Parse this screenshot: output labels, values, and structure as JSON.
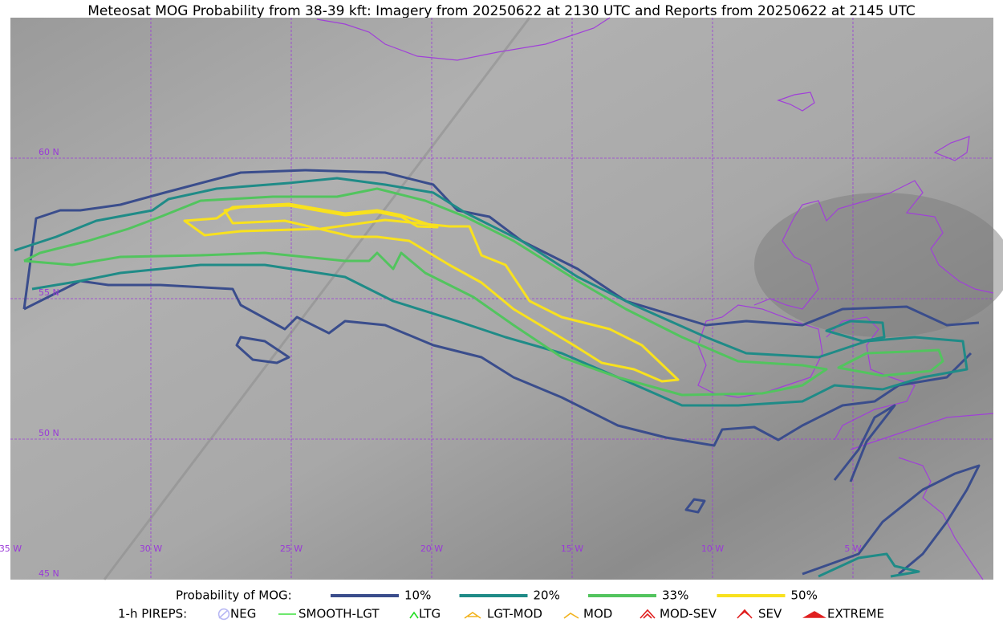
{
  "title": "Meteosat MOG Probability from 38-39 kft: Imagery from 20250622 at 2130 UTC and Reports from 20250622 at 2145 UTC",
  "map": {
    "lat_labels": [
      "60 N",
      "55 N",
      "50 N",
      "45 N"
    ],
    "lon_labels": [
      "35 W",
      "30 W",
      "25 W",
      "20 W",
      "15 W",
      "10 W",
      "5 W"
    ]
  },
  "legend": {
    "probability": {
      "label": "Probability of MOG:",
      "items": [
        {
          "label": "10%",
          "color": "#3a4d8c"
        },
        {
          "label": "20%",
          "color": "#1f8b87"
        },
        {
          "label": "33%",
          "color": "#52c45e"
        },
        {
          "label": "50%",
          "color": "#f8e11e"
        }
      ]
    },
    "pireps": {
      "label": "1-h PIREPS:",
      "items": [
        {
          "label": "NEG",
          "color": "#b8b8f4"
        },
        {
          "label": "SMOOTH-LGT",
          "color": "#3fe03f"
        },
        {
          "label": "LTG",
          "color": "#22dd22"
        },
        {
          "label": "LGT-MOD",
          "color": "#f2b21c"
        },
        {
          "label": "MOD",
          "color": "#f2b21c"
        },
        {
          "label": "MOD-SEV",
          "color": "#e02020"
        },
        {
          "label": "SEV",
          "color": "#e02020"
        },
        {
          "label": "EXTREME",
          "color": "#e02020"
        }
      ]
    }
  }
}
